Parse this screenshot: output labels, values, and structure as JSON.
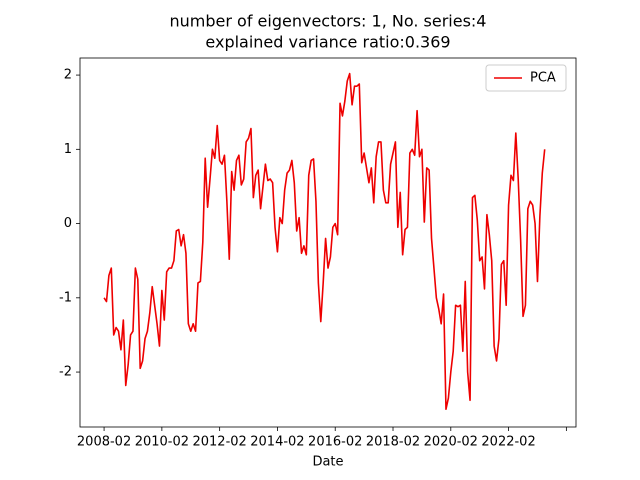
{
  "chart_data": {
    "type": "line",
    "title": [
      "number of eigenvectors: 1, No. series:4",
      "explained variance ratio:0.369"
    ],
    "xlabel": "Date",
    "legend": "upper right",
    "grid": false,
    "xlim": [
      "2007-04",
      "2024-06"
    ],
    "xticks": [
      "2008-02",
      "2010-02",
      "2012-02",
      "2014-02",
      "2016-02",
      "2018-02",
      "2020-02",
      "2022-02",
      {
        "value": "2024-02",
        "label": null
      }
    ],
    "ylim": [
      -2.74,
      2.23
    ],
    "yticks": [
      -2,
      -1,
      0,
      1,
      2
    ],
    "x": [
      "2008-02",
      "2008-03",
      "2008-04",
      "2008-05",
      "2008-06",
      "2008-07",
      "2008-08",
      "2008-09",
      "2008-10",
      "2008-11",
      "2008-12",
      "2009-01",
      "2009-02",
      "2009-03",
      "2009-04",
      "2009-05",
      "2009-06",
      "2009-07",
      "2009-08",
      "2009-09",
      "2009-10",
      "2009-11",
      "2009-12",
      "2010-01",
      "2010-02",
      "2010-03",
      "2010-04",
      "2010-05",
      "2010-06",
      "2010-07",
      "2010-08",
      "2010-09",
      "2010-10",
      "2010-11",
      "2010-12",
      "2011-01",
      "2011-02",
      "2011-03",
      "2011-04",
      "2011-05",
      "2011-06",
      "2011-07",
      "2011-08",
      "2011-09",
      "2011-10",
      "2011-11",
      "2011-12",
      "2012-01",
      "2012-02",
      "2012-03",
      "2012-04",
      "2012-05",
      "2012-06",
      "2012-07",
      "2012-08",
      "2012-09",
      "2012-10",
      "2012-11",
      "2012-12",
      "2013-01",
      "2013-02",
      "2013-03",
      "2013-04",
      "2013-05",
      "2013-06",
      "2013-07",
      "2013-08",
      "2013-09",
      "2013-10",
      "2013-11",
      "2013-12",
      "2014-01",
      "2014-02",
      "2014-03",
      "2014-04",
      "2014-05",
      "2014-06",
      "2014-07",
      "2014-08",
      "2014-09",
      "2014-10",
      "2014-11",
      "2014-12",
      "2015-01",
      "2015-02",
      "2015-03",
      "2015-04",
      "2015-05",
      "2015-06",
      "2015-07",
      "2015-08",
      "2015-09",
      "2015-10",
      "2015-11",
      "2015-12",
      "2016-01",
      "2016-02",
      "2016-03",
      "2016-04",
      "2016-05",
      "2016-06",
      "2016-07",
      "2016-08",
      "2016-09",
      "2016-10",
      "2016-11",
      "2016-12",
      "2017-01",
      "2017-02",
      "2017-03",
      "2017-04",
      "2017-05",
      "2017-06",
      "2017-07",
      "2017-08",
      "2017-09",
      "2017-10",
      "2017-11",
      "2017-12",
      "2018-01",
      "2018-02",
      "2018-03",
      "2018-04",
      "2018-05",
      "2018-06",
      "2018-07",
      "2018-08",
      "2018-09",
      "2018-10",
      "2018-11",
      "2018-12",
      "2019-01",
      "2019-02",
      "2019-03",
      "2019-04",
      "2019-05",
      "2019-06",
      "2019-07",
      "2019-08",
      "2019-09",
      "2019-10",
      "2019-11",
      "2019-12",
      "2020-01",
      "2020-02",
      "2020-03",
      "2020-04",
      "2020-05",
      "2020-06",
      "2020-07",
      "2020-08",
      "2020-09",
      "2020-10",
      "2020-11",
      "2020-12",
      "2021-01",
      "2021-02",
      "2021-03",
      "2021-04",
      "2021-05",
      "2021-06",
      "2021-07",
      "2021-08",
      "2021-09",
      "2021-10",
      "2021-11",
      "2021-12",
      "2022-01",
      "2022-02",
      "2022-03",
      "2022-04",
      "2022-05",
      "2022-06",
      "2022-07",
      "2022-08",
      "2022-09",
      "2022-10",
      "2022-11",
      "2022-12",
      "2023-01",
      "2023-02",
      "2023-03",
      "2023-04",
      "2023-05"
    ],
    "series": [
      {
        "name": "PCA",
        "color": "#ee0000",
        "values": [
          -1.0,
          -1.05,
          -0.7,
          -0.6,
          -1.5,
          -1.4,
          -1.45,
          -1.7,
          -1.3,
          -2.18,
          -1.9,
          -1.5,
          -1.45,
          -0.6,
          -0.75,
          -1.95,
          -1.85,
          -1.55,
          -1.45,
          -1.2,
          -0.85,
          -1.1,
          -1.35,
          -1.65,
          -0.9,
          -1.3,
          -0.65,
          -0.6,
          -0.6,
          -0.5,
          -0.1,
          -0.08,
          -0.3,
          -0.15,
          -0.4,
          -1.35,
          -1.45,
          -1.35,
          -1.45,
          -0.8,
          -0.78,
          -0.25,
          0.88,
          0.22,
          0.6,
          1.0,
          0.88,
          1.32,
          0.85,
          0.8,
          0.92,
          0.3,
          -0.48,
          0.7,
          0.45,
          0.85,
          0.92,
          0.52,
          0.6,
          1.1,
          1.15,
          1.28,
          0.35,
          0.65,
          0.72,
          0.2,
          0.5,
          0.8,
          0.58,
          0.6,
          0.55,
          -0.05,
          -0.38,
          0.08,
          0.0,
          0.45,
          0.68,
          0.72,
          0.85,
          0.55,
          -0.1,
          0.08,
          -0.4,
          -0.3,
          -0.42,
          0.65,
          0.85,
          0.87,
          0.3,
          -0.8,
          -1.32,
          -0.8,
          -0.2,
          -0.6,
          -0.45,
          -0.05,
          0.0,
          -0.15,
          1.62,
          1.45,
          1.65,
          1.92,
          2.02,
          1.6,
          1.85,
          1.85,
          1.88,
          0.82,
          0.95,
          0.75,
          0.55,
          0.75,
          0.28,
          0.9,
          1.1,
          1.1,
          0.45,
          0.28,
          0.28,
          0.8,
          0.95,
          1.1,
          -0.05,
          0.42,
          -0.42,
          -0.08,
          -0.05,
          0.95,
          1.0,
          0.92,
          1.52,
          0.9,
          1.0,
          0.02,
          0.75,
          0.72,
          -0.2,
          -0.6,
          -1.0,
          -1.15,
          -1.35,
          -0.95,
          -2.5,
          -2.35,
          -2.0,
          -1.72,
          -1.1,
          -1.12,
          -1.1,
          -1.72,
          -0.78,
          -2.0,
          -2.38,
          0.35,
          0.38,
          0.05,
          -0.5,
          -0.45,
          -0.88,
          0.12,
          -0.15,
          -0.5,
          -1.65,
          -1.85,
          -1.55,
          -0.55,
          -0.5,
          -1.1,
          0.25,
          0.65,
          0.58,
          1.22,
          0.6,
          -0.22,
          -1.25,
          -1.1,
          0.2,
          0.3,
          0.25,
          0.0,
          -0.78,
          0.1,
          0.68,
          1.0
        ]
      }
    ]
  }
}
